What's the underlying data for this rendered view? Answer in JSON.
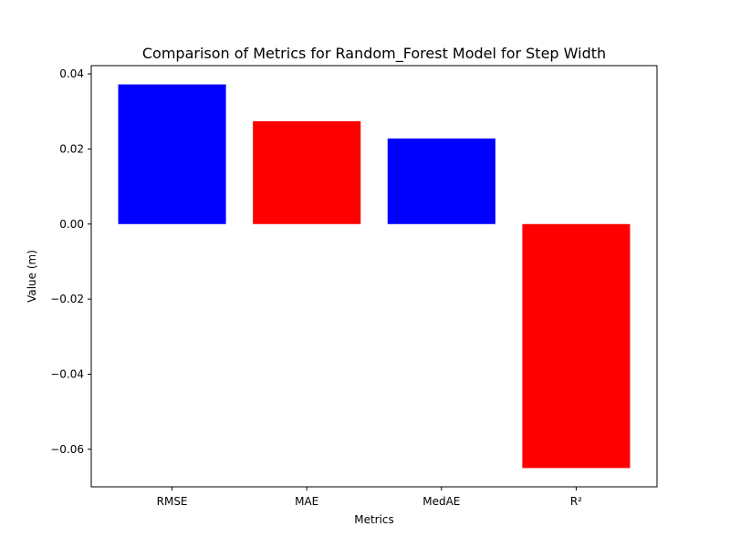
{
  "chart_data": {
    "type": "bar",
    "title": "Comparison of Metrics for Random_Forest Model for Step Width",
    "xlabel": "Metrics",
    "ylabel": "Value (m)",
    "categories": [
      "RMSE",
      "MAE",
      "MedAE",
      "R²"
    ],
    "values": [
      0.0372,
      0.0274,
      0.0228,
      -0.065
    ],
    "bar_colors": [
      "#0000ff",
      "#ff0000",
      "#0000ff",
      "#ff0000"
    ],
    "ylim": [
      -0.07,
      0.0422
    ],
    "yticks": [
      -0.06,
      -0.04,
      -0.02,
      0.0,
      0.02,
      0.04
    ],
    "ytick_labels": [
      "−0.06",
      "−0.04",
      "−0.02",
      "0.00",
      "0.02",
      "0.04"
    ],
    "grid": false,
    "legend": "none"
  }
}
